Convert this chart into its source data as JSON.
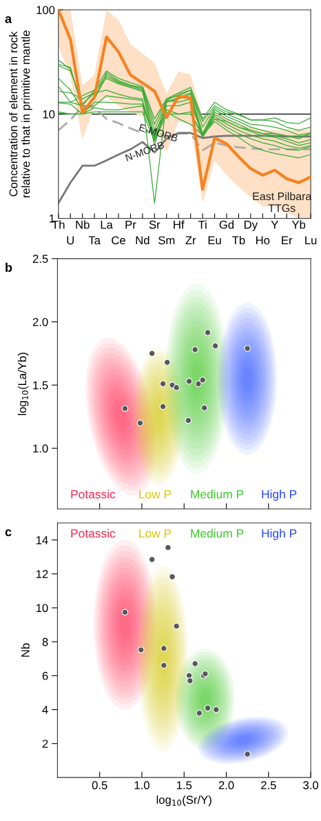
{
  "chart_data": [
    {
      "type": "line",
      "ylabel": "Concentration of element in rock\nrelative to that in primitive mantle",
      "annotations": [
        "a"
      ],
      "categories": [
        "Th",
        "U",
        "Nb",
        "Ta",
        "La",
        "Ce",
        "Pr",
        "Nd",
        "Sr",
        "Sm",
        "Hf",
        "Zr",
        "Ti",
        "Eu",
        "Gd",
        "Tb",
        "Dy",
        "Ho",
        "Y",
        "Er",
        "Yb",
        "Lu"
      ],
      "log": true,
      "ylim": [
        1,
        100
      ],
      "yticks": [
        1,
        10,
        100
      ],
      "grid": false,
      "legend": false,
      "marker": "none",
      "ref_lines": [
        {
          "axis": "y",
          "value": 10,
          "color": "#000000",
          "line_style": "solid"
        }
      ],
      "series": [
        {
          "color": "#3aaa35",
          "values": [
            33,
            27,
            12,
            17,
            26,
            22,
            20,
            18.5,
            9,
            14,
            16,
            18,
            9,
            13,
            11,
            10,
            8.8,
            8.8,
            9.2,
            8.3,
            8.1,
            9.2
          ]
        },
        {
          "color": "#3aaa35",
          "values": [
            30,
            28,
            11,
            14,
            25,
            21,
            19,
            18,
            8,
            14,
            15,
            17,
            8.5,
            12,
            10.5,
            9.8,
            8.8,
            8.8,
            8.5,
            7.5,
            7,
            7.5
          ]
        },
        {
          "color": "#3aaa35",
          "values": [
            29,
            26,
            12.5,
            16,
            24,
            20.5,
            19,
            17.5,
            7,
            13.5,
            15.5,
            17,
            7.5,
            11.5,
            10,
            9,
            8,
            7.8,
            7.5,
            7,
            6.3,
            6.6
          ]
        },
        {
          "color": "#3aaa35",
          "values": [
            22,
            17,
            11,
            14,
            23,
            20,
            18.5,
            17,
            6,
            13,
            14.5,
            16,
            6.5,
            11,
            9.5,
            8.5,
            7.5,
            7,
            6.5,
            6.2,
            5.8,
            6.5
          ]
        },
        {
          "color": "#3aaa35",
          "values": [
            18.5,
            13,
            15,
            17,
            22,
            19.5,
            18,
            16.5,
            5,
            13,
            14,
            15.5,
            6.2,
            10.5,
            9,
            8,
            7,
            6.5,
            6.2,
            5.8,
            5.3,
            5.7
          ]
        },
        {
          "color": "#3aaa35",
          "values": [
            16.5,
            16,
            14,
            16,
            17,
            15.5,
            14.5,
            14,
            1.4,
            13.5,
            13,
            14,
            6.2,
            10,
            8.5,
            7.5,
            6.8,
            6.2,
            6,
            5.5,
            5,
            5.3
          ]
        },
        {
          "color": "#3aaa35",
          "values": [
            13,
            13,
            12,
            12,
            15,
            14.5,
            14,
            13.5,
            5.5,
            12,
            12,
            13,
            6.3,
            9.5,
            8,
            7,
            6.3,
            5.8,
            5.5,
            5,
            4.7,
            5
          ]
        },
        {
          "color": "#3aaa35",
          "values": [
            12.8,
            12.5,
            10,
            13,
            13,
            12.8,
            12.5,
            12.5,
            6.5,
            11,
            10,
            10,
            6.5,
            9,
            7.5,
            6.5,
            5.8,
            5.3,
            5,
            4.6,
            4.5,
            4.9
          ]
        },
        {
          "color": "#3aaa35",
          "values": [
            10.5,
            10,
            10,
            11.5,
            11,
            11,
            11.5,
            12,
            5.8,
            10.5,
            9,
            8,
            6.3,
            8.5,
            7,
            6,
            5,
            4.5,
            4.2,
            4,
            3.8,
            4.1
          ]
        },
        {
          "color": "#3aaa35",
          "values": [
            10.2,
            10,
            10,
            10.5,
            10.5,
            10.5,
            10.5,
            10.5,
            5.5,
            10,
            10,
            10.5,
            6,
            9,
            8.5,
            7.5,
            7,
            6.5,
            6.5,
            6.2,
            6,
            6.5
          ]
        },
        {
          "name": "E-MORB",
          "color": "#aaaaaa",
          "line_style": "dashed",
          "values": [
            7,
            8.8,
            11.9,
            11.5,
            9,
            8.2,
            7.3,
            6.6,
            7,
            6,
            6.5,
            6.5,
            4.5,
            5.3,
            5,
            4.8,
            4.7,
            4.6,
            4.6,
            4.6,
            4.6,
            4.6
          ]
        },
        {
          "name": "N-MORB",
          "color": "#777777",
          "line_style": "solid",
          "values": [
            1.4,
            2.2,
            3.2,
            3.2,
            3.6,
            4.1,
            4.6,
            5.4,
            4.3,
            5.8,
            6.6,
            6.6,
            5.9,
            6.1,
            6.2,
            6.2,
            6.2,
            6.2,
            6.2,
            6.1,
            6.1,
            6.1
          ]
        },
        {
          "name": "East Pilbara\nTTGs",
          "color": "#f58220",
          "values": [
            100,
            52,
            10.3,
            14.6,
            55,
            39.5,
            23.7,
            19.9,
            16.6,
            9.3,
            14.8,
            14.3,
            1.9,
            5.9,
            5.2,
            3.9,
            3,
            2.6,
            2.9,
            2.4,
            2.2,
            2.5
          ],
          "lower": [
            45,
            23,
            5.7,
            12,
            14.6,
            12,
            10.5,
            9.5,
            7.5,
            4.3,
            8.5,
            8,
            1.4,
            3.6,
            2.6,
            2,
            1.6,
            1.3,
            1.3,
            1.15,
            1,
            1
          ],
          "upper": [
            100,
            100,
            18.9,
            24,
            100,
            80,
            47,
            38,
            31,
            15.8,
            25.6,
            24,
            9.3,
            10.5,
            9,
            8,
            7.5,
            7,
            7,
            7,
            7,
            7
          ]
        }
      ]
    },
    {
      "type": "scatter",
      "ylabel": "log$_{10}$(La/Yb)",
      "annotations": [
        "b",
        "Potassic",
        "Low P",
        "Medium P",
        "High P"
      ],
      "xlim": [
        0,
        3
      ],
      "xticks": [
        0.5,
        1,
        1.5,
        2,
        2.5
      ],
      "ylim": [
        0.52,
        2.5
      ],
      "yticks": [
        {
          "value": 1,
          "label": "1.0"
        },
        1.5,
        {
          "value": 2,
          "label": "2.0"
        },
        2.5
      ],
      "tick_labels": "y",
      "grid": false,
      "legend": false,
      "marker": "circle",
      "series": [
        {
          "color": "#58585a",
          "x": [
            0.8,
            0.98,
            1.12,
            1.3,
            1.25,
            1.36,
            1.41,
            1.25,
            1.56,
            1.63,
            1.67,
            1.72,
            1.78,
            1.87,
            1.74,
            1.55,
            2.25
          ],
          "values": [
            1.315,
            1.2,
            1.75,
            1.68,
            1.51,
            1.5,
            1.48,
            1.33,
            1.53,
            1.78,
            1.51,
            1.54,
            1.915,
            1.81,
            1.32,
            1.22,
            1.79
          ]
        }
      ]
    },
    {
      "type": "scatter",
      "xlabel": "log$_{10}$(Sr/Y)",
      "ylabel": "Nb",
      "annotations": [
        "c",
        "Potassic",
        "Low P",
        "Medium P",
        "High P"
      ],
      "xlim": [
        0,
        3
      ],
      "xticks": [
        0.5,
        {
          "value": 1,
          "label": "1.0"
        },
        1.5,
        {
          "value": 2,
          "label": "2.0"
        },
        2.5,
        {
          "value": 3,
          "label": "3.0"
        }
      ],
      "ylim": [
        0,
        15
      ],
      "yticks": [
        2,
        4,
        6,
        8,
        10,
        12,
        14
      ],
      "grid": false,
      "legend": false,
      "marker": "circle",
      "series": [
        {
          "color": "#58585a",
          "x": [
            0.8,
            0.99,
            1.12,
            1.31,
            1.36,
            1.41,
            1.26,
            1.26,
            1.63,
            1.56,
            1.57,
            1.73,
            1.75,
            1.78,
            1.88,
            1.68,
            2.25
          ],
          "values": [
            9.74,
            7.52,
            12.85,
            13.55,
            11.83,
            8.92,
            7.61,
            6.61,
            6.71,
            6.01,
            5.7,
            6.01,
            6.11,
            4.09,
            4.0,
            3.79,
            1.38
          ]
        }
      ]
    }
  ]
}
